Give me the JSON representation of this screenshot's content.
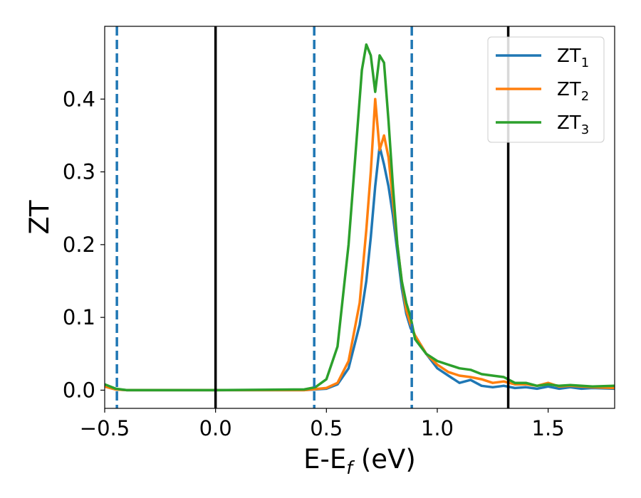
{
  "chart_data": {
    "type": "line",
    "title": "",
    "xlabel": "E-E",
    "xlabel_subscript": "f",
    "xlabel_unit": " (eV)",
    "ylabel": "ZT",
    "xlim": [
      -0.5,
      1.8
    ],
    "ylim": [
      -0.025,
      0.5
    ],
    "xticks": [
      -0.5,
      0.0,
      0.5,
      1.0,
      1.5
    ],
    "xtick_labels": [
      "−0.5",
      "0.0",
      "0.5",
      "1.0",
      "1.5"
    ],
    "yticks": [
      0.0,
      0.1,
      0.2,
      0.3,
      0.4
    ],
    "ytick_labels": [
      "0.0",
      "0.1",
      "0.2",
      "0.3",
      "0.4"
    ],
    "grid": false,
    "legend_position": "top-right",
    "vlines": [
      {
        "x": -0.445,
        "style": "dashed",
        "color": "#1f77b4"
      },
      {
        "x": 0.0,
        "style": "solid",
        "color": "#000000"
      },
      {
        "x": 0.445,
        "style": "dashed",
        "color": "#1f77b4"
      },
      {
        "x": 0.885,
        "style": "dashed",
        "color": "#1f77b4"
      },
      {
        "x": 1.32,
        "style": "solid",
        "color": "#000000"
      }
    ],
    "series": [
      {
        "name": "ZT",
        "subscript": "1",
        "color": "#1f77b4",
        "x": [
          -0.5,
          -0.45,
          -0.4,
          0.0,
          0.4,
          0.5,
          0.55,
          0.6,
          0.65,
          0.68,
          0.7,
          0.72,
          0.74,
          0.76,
          0.78,
          0.8,
          0.82,
          0.84,
          0.86,
          0.88,
          0.9,
          0.95,
          1.0,
          1.05,
          1.1,
          1.15,
          1.2,
          1.25,
          1.3,
          1.35,
          1.4,
          1.45,
          1.5,
          1.55,
          1.6,
          1.65,
          1.7,
          1.8
        ],
        "y": [
          0.005,
          0.001,
          0.0,
          0.0,
          0.0,
          0.002,
          0.008,
          0.03,
          0.09,
          0.15,
          0.21,
          0.28,
          0.335,
          0.31,
          0.28,
          0.24,
          0.19,
          0.14,
          0.105,
          0.085,
          0.075,
          0.05,
          0.03,
          0.02,
          0.01,
          0.014,
          0.006,
          0.004,
          0.006,
          0.003,
          0.004,
          0.002,
          0.005,
          0.002,
          0.004,
          0.002,
          0.003,
          0.002
        ]
      },
      {
        "name": "ZT",
        "subscript": "2",
        "color": "#ff7f0e",
        "x": [
          -0.5,
          -0.45,
          -0.4,
          0.0,
          0.4,
          0.5,
          0.55,
          0.6,
          0.65,
          0.68,
          0.7,
          0.72,
          0.74,
          0.76,
          0.78,
          0.8,
          0.82,
          0.84,
          0.86,
          0.88,
          0.9,
          0.95,
          1.0,
          1.05,
          1.1,
          1.15,
          1.2,
          1.25,
          1.3,
          1.35,
          1.4,
          1.45,
          1.5,
          1.55,
          1.6,
          1.65,
          1.7,
          1.8
        ],
        "y": [
          0.005,
          0.001,
          0.0,
          0.0,
          0.0,
          0.003,
          0.01,
          0.04,
          0.12,
          0.22,
          0.3,
          0.4,
          0.33,
          0.35,
          0.32,
          0.26,
          0.2,
          0.15,
          0.11,
          0.09,
          0.075,
          0.05,
          0.035,
          0.025,
          0.02,
          0.018,
          0.015,
          0.01,
          0.012,
          0.008,
          0.008,
          0.006,
          0.01,
          0.005,
          0.006,
          0.005,
          0.004,
          0.003
        ]
      },
      {
        "name": "ZT",
        "subscript": "3",
        "color": "#2ca02c",
        "x": [
          -0.5,
          -0.45,
          -0.4,
          0.0,
          0.4,
          0.45,
          0.5,
          0.55,
          0.6,
          0.63,
          0.66,
          0.68,
          0.7,
          0.72,
          0.74,
          0.76,
          0.78,
          0.8,
          0.82,
          0.84,
          0.86,
          0.88,
          0.9,
          0.95,
          1.0,
          1.05,
          1.1,
          1.15,
          1.2,
          1.25,
          1.3,
          1.35,
          1.4,
          1.45,
          1.5,
          1.55,
          1.6,
          1.65,
          1.7,
          1.8
        ],
        "y": [
          0.008,
          0.002,
          0.0,
          0.0,
          0.001,
          0.004,
          0.015,
          0.06,
          0.2,
          0.32,
          0.44,
          0.475,
          0.46,
          0.41,
          0.46,
          0.45,
          0.37,
          0.28,
          0.2,
          0.15,
          0.12,
          0.1,
          0.07,
          0.05,
          0.04,
          0.035,
          0.03,
          0.028,
          0.022,
          0.02,
          0.018,
          0.01,
          0.01,
          0.006,
          0.008,
          0.006,
          0.007,
          0.006,
          0.005,
          0.006
        ]
      }
    ]
  }
}
